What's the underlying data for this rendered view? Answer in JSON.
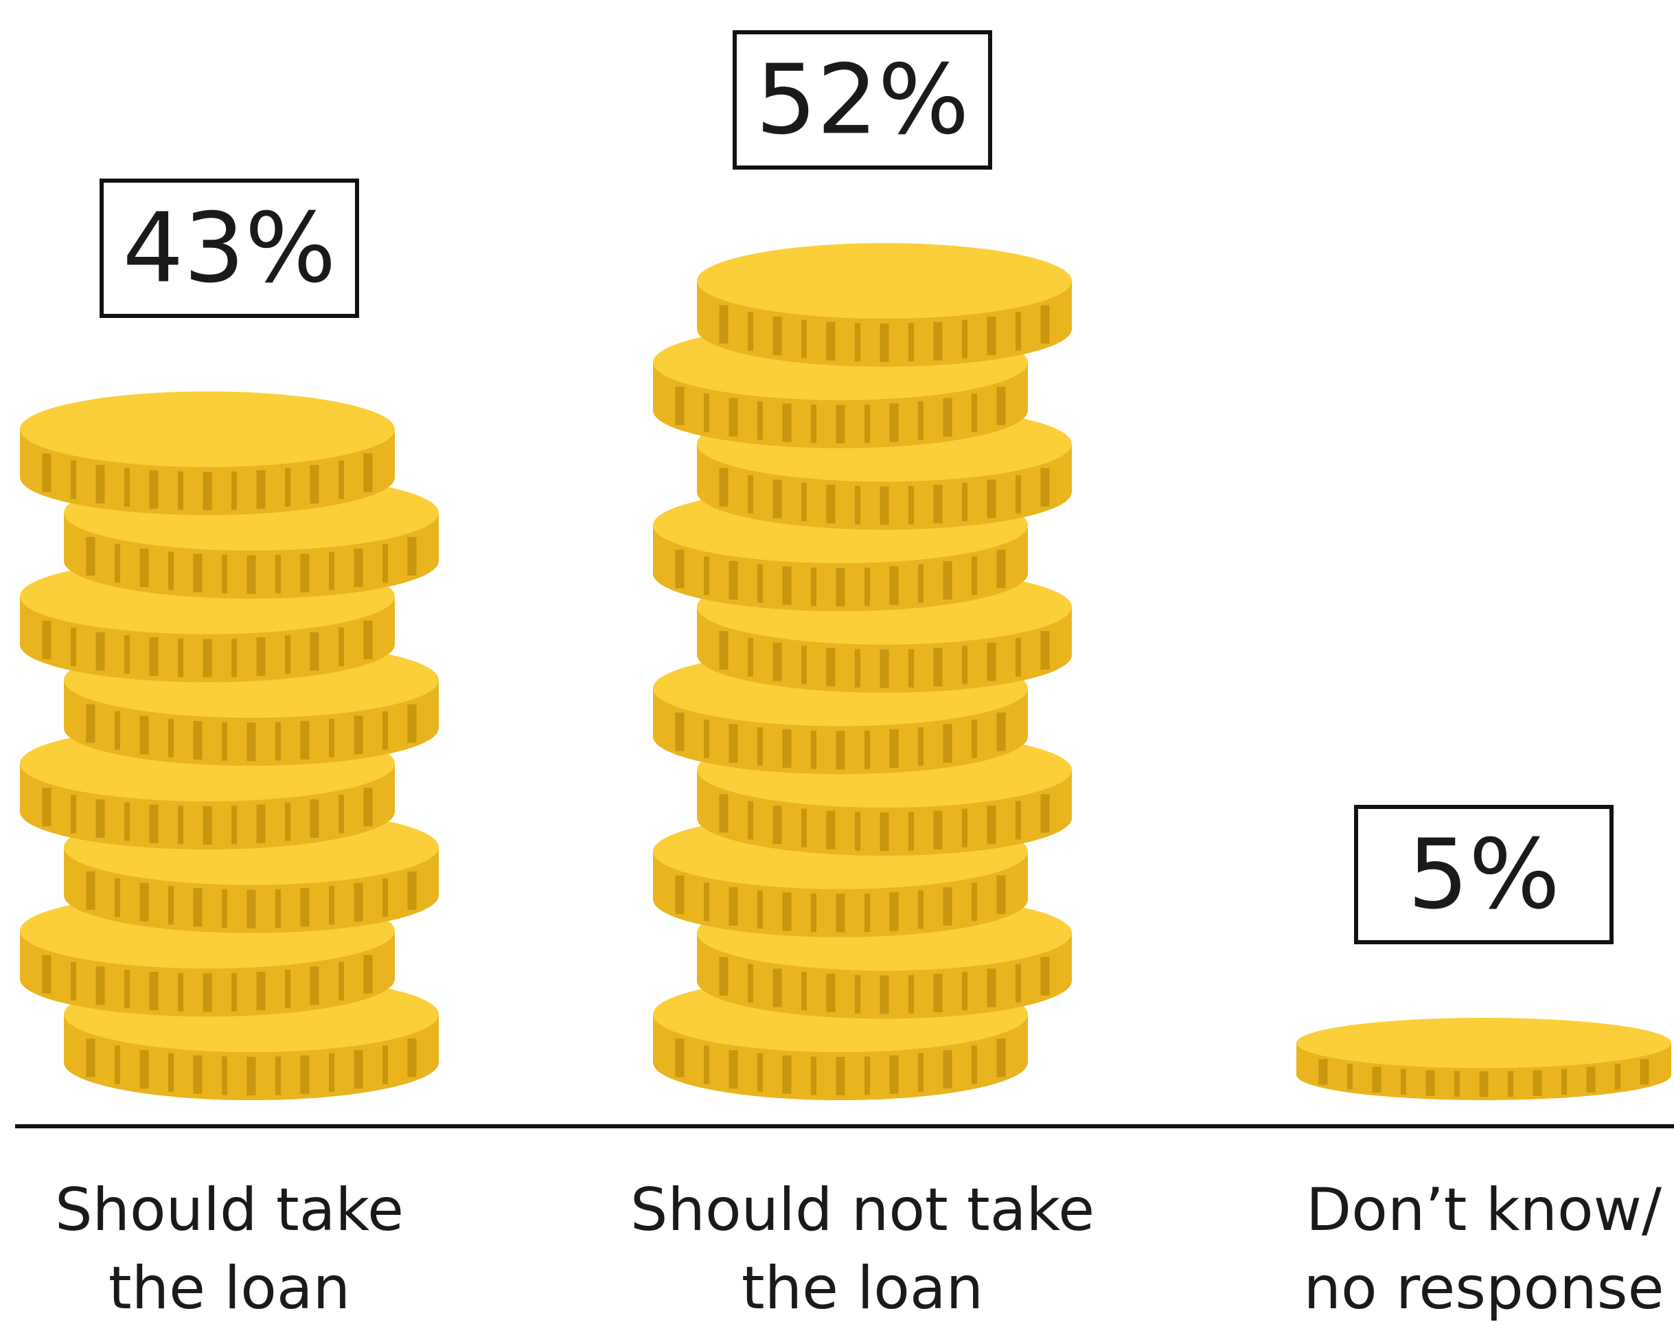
{
  "chart_data": {
    "type": "pictogram-bar",
    "categories": [
      "Should take the loan",
      "Should not take the loan",
      "Don’t know/ no response"
    ],
    "values": [
      43,
      52,
      5
    ],
    "value_labels": [
      "43%",
      "52%",
      "5%"
    ],
    "color": "#fbcf3a"
  }
}
